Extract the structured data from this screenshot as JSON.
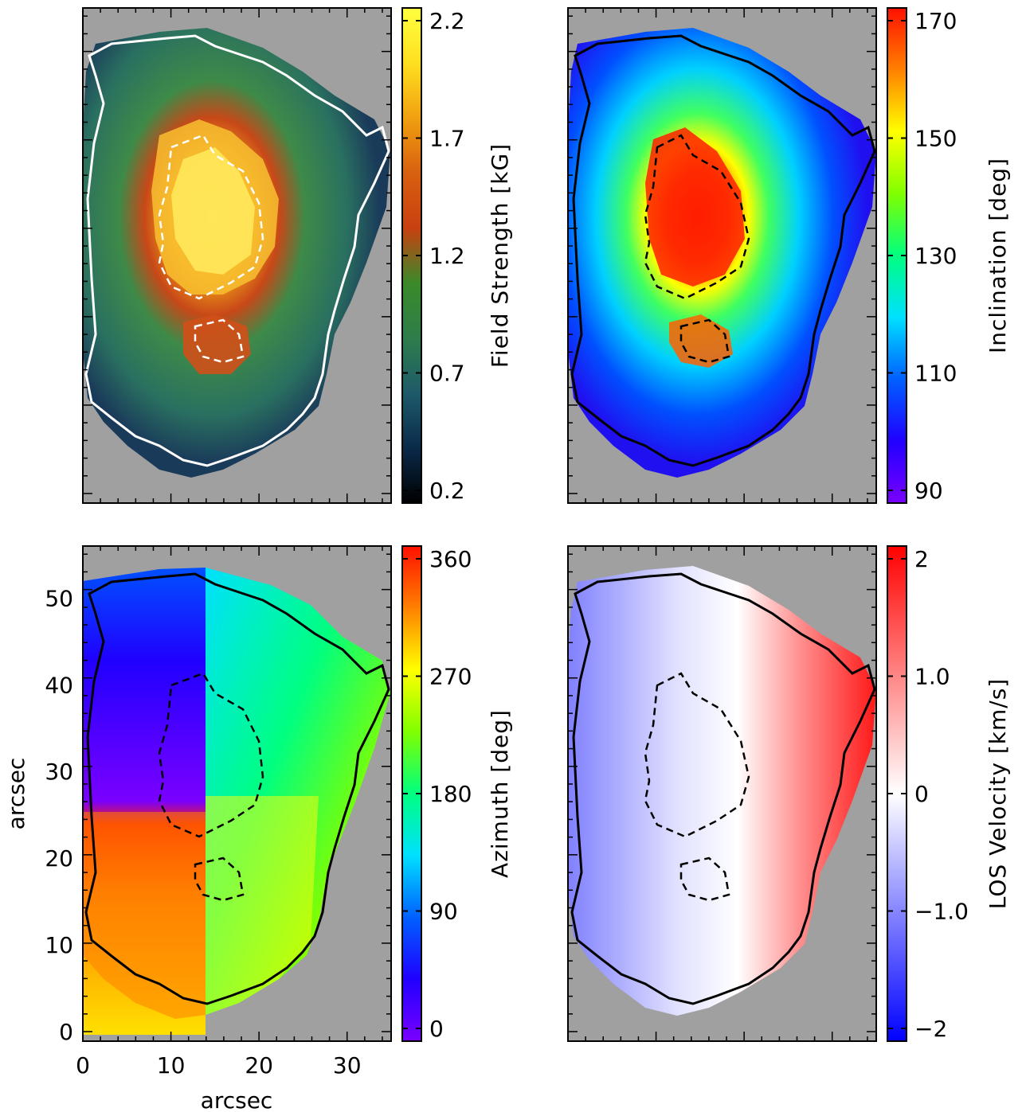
{
  "chart_data": [
    {
      "type": "heatmap",
      "panel": "top-left",
      "colorbar": {
        "label": "Field Strength [kG]",
        "ticks": [
          "2.2",
          "1.7",
          "1.2",
          "0.7",
          "0.2"
        ],
        "range": [
          0.2,
          2.2
        ],
        "colormap": [
          "#000000",
          "#0a2a4a",
          "#1e5a6a",
          "#2e7d4a",
          "#3a8a2a",
          "#c84010",
          "#d86010",
          "#f0a010",
          "#ffe020",
          "#ffff40"
        ]
      },
      "contour_color": "#ffffff",
      "missing_color": "#a0a0a0"
    },
    {
      "type": "heatmap",
      "panel": "top-right",
      "colorbar": {
        "label": "Inclination [deg]",
        "ticks": [
          "170",
          "150",
          "130",
          "110",
          "90"
        ],
        "range": [
          90,
          170
        ],
        "colormap": [
          "#7a00ff",
          "#2000ff",
          "#0060ff",
          "#00e0ff",
          "#00ff80",
          "#80ff00",
          "#ffff00",
          "#ff8000",
          "#ff1000"
        ]
      },
      "contour_color": "#000000",
      "missing_color": "#a0a0a0"
    },
    {
      "type": "heatmap",
      "panel": "bottom-left",
      "xlabel": "arcsec",
      "ylabel": "arcsec",
      "xticks": [
        "0",
        "10",
        "20",
        "30"
      ],
      "yticks": [
        "0",
        "10",
        "20",
        "30",
        "40",
        "50"
      ],
      "xlim": [
        0,
        35
      ],
      "ylim": [
        0,
        56
      ],
      "colorbar": {
        "label": "Azimuth [deg]",
        "ticks": [
          "360",
          "270",
          "180",
          "90",
          "0"
        ],
        "range": [
          0,
          360
        ],
        "colormap": [
          "#7a00ff",
          "#2000ff",
          "#0060ff",
          "#00e0ff",
          "#00ff80",
          "#80ff00",
          "#ffff00",
          "#ff8000",
          "#ff1000"
        ]
      },
      "contour_color": "#000000",
      "missing_color": "#a0a0a0"
    },
    {
      "type": "heatmap",
      "panel": "bottom-right",
      "colorbar": {
        "label": "LOS Velocity [km/s]",
        "ticks": [
          "2",
          "1.0",
          "0",
          "−1.0",
          "−2"
        ],
        "range": [
          -2,
          2
        ],
        "colormap": [
          "#0000ff",
          "#8080ff",
          "#ffffff",
          "#ff8080",
          "#ff0000"
        ]
      },
      "contour_color": "#000000",
      "missing_color": "#a0a0a0"
    }
  ]
}
